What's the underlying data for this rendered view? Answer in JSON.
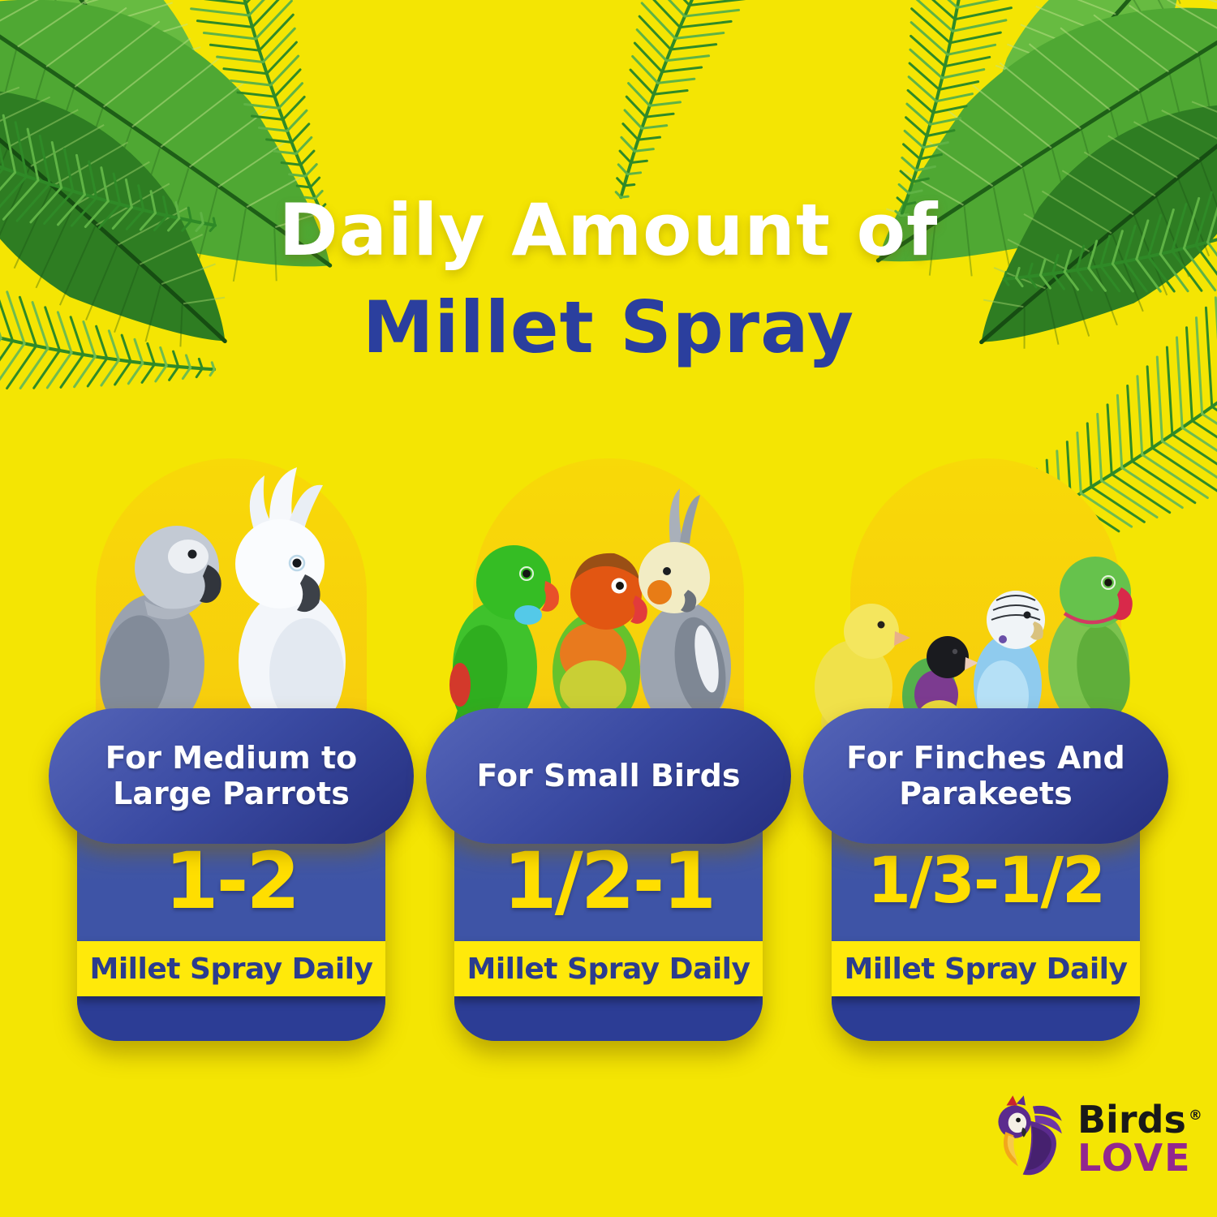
{
  "title": {
    "line1": "Daily Amount of",
    "line2": "Millet Spray"
  },
  "cards": [
    {
      "audience": "For Medium to Large Parrots",
      "amount": "1-2",
      "frequency": "Millet Spray Daily",
      "birds": [
        "African Grey Parrot",
        "White Cockatoo"
      ]
    },
    {
      "audience": "For Small Birds",
      "amount": "1/2-1",
      "frequency": "Millet Spray Daily",
      "birds": [
        "Green Parrot",
        "Fischer's Lovebird",
        "Cockatiel"
      ]
    },
    {
      "audience": "For Finches And Parakeets",
      "amount": "1/3-1/2",
      "frequency": "Millet Spray Daily",
      "birds": [
        "Canary",
        "Gouldian Finch",
        "Budgerigar",
        "Ringneck Parakeet"
      ]
    }
  ],
  "logo": {
    "brand_line1": "Birds",
    "registered_mark": "®",
    "brand_line2": "LOVE"
  },
  "colors": {
    "background": "#F4E503",
    "arch_gold": "#F7D10A",
    "pill_blue": "#3A4AA2",
    "card_blue": "#3E54A6",
    "card_bottom_blue": "#2C3D95",
    "band_yellow": "#FFE90A",
    "number_yellow": "#FFDE00",
    "text_blue": "#2B3C8E",
    "title_blue": "#2B3F9E",
    "title_white": "#FFFFFF",
    "logo_purple": "#93268F",
    "leaf_green": "#4FA833"
  }
}
